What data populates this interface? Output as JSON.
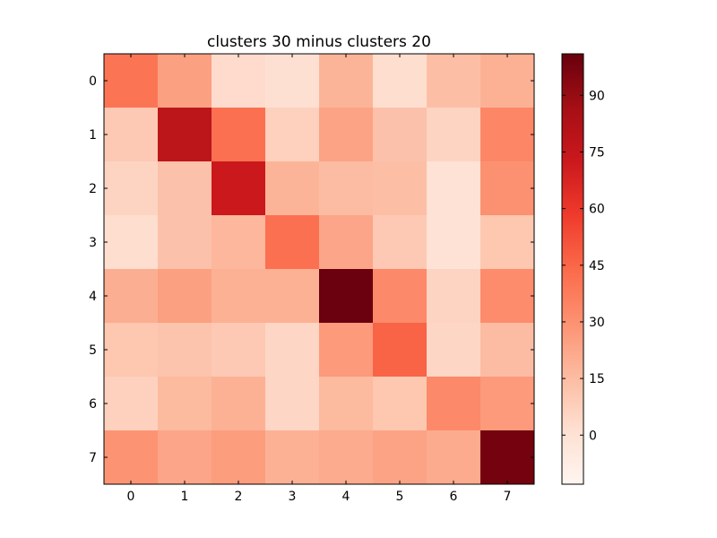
{
  "chart_data": {
    "type": "heatmap",
    "title": "clusters 30 minus clusters 20",
    "x_categories": [
      "0",
      "1",
      "2",
      "3",
      "4",
      "5",
      "6",
      "7"
    ],
    "y_categories": [
      "0",
      "1",
      "2",
      "3",
      "4",
      "5",
      "6",
      "7"
    ],
    "values": [
      [
        40,
        25,
        3,
        1,
        18,
        2,
        14,
        19
      ],
      [
        10,
        78,
        42,
        7,
        24,
        13,
        6,
        34
      ],
      [
        6,
        13,
        73,
        18,
        15,
        14,
        0,
        30
      ],
      [
        2,
        13,
        17,
        42,
        23,
        10,
        0,
        11
      ],
      [
        20,
        25,
        19,
        19,
        100,
        33,
        6,
        32
      ],
      [
        11,
        12,
        10,
        5,
        27,
        46,
        5,
        15
      ],
      [
        7,
        16,
        19,
        5,
        16,
        11,
        33,
        27
      ],
      [
        29,
        23,
        26,
        19,
        21,
        24,
        21,
        98
      ]
    ],
    "colorscale": "Reds",
    "vmin": -13,
    "vmax": 101,
    "colorbar_ticks": [
      0,
      15,
      30,
      45,
      60,
      75,
      90
    ]
  }
}
